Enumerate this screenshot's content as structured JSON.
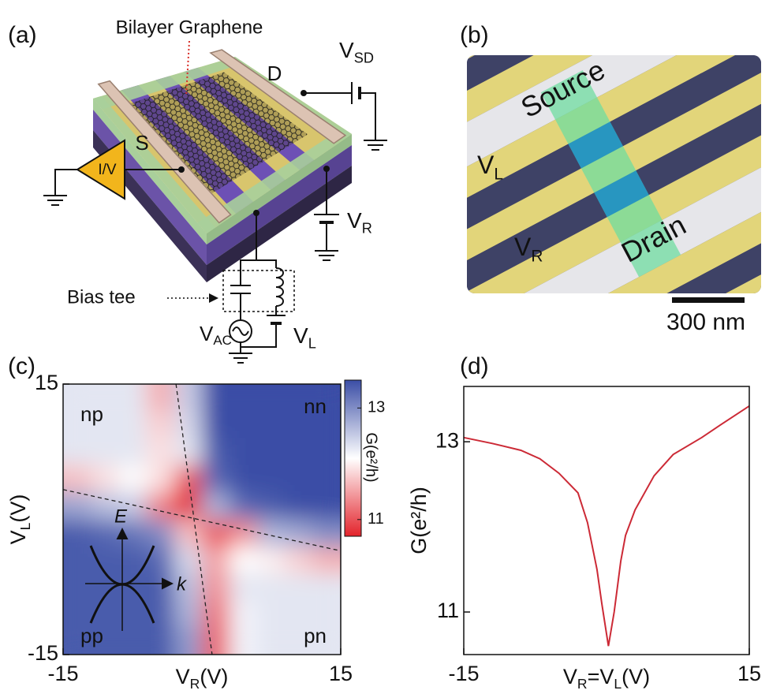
{
  "panels": [
    {
      "label": "(a)",
      "annotations": {
        "graphene": "Bilayer Graphene",
        "drain": "D",
        "source": "S",
        "vsd": [
          "V",
          "SD"
        ],
        "iv": "I/V",
        "vr": [
          "V",
          "R"
        ],
        "bias_tee": "Bias tee",
        "vac": [
          "V",
          "AC"
        ],
        "vl": [
          "V",
          "L"
        ]
      }
    },
    {
      "label": "(b)",
      "annotations": {
        "source": "Source",
        "drain": "Drain",
        "vl": [
          "V",
          "L"
        ],
        "vr": [
          "V",
          "R"
        ],
        "scale_bar": "300 nm"
      }
    }
  ],
  "chart_data": [
    {
      "type": "heatmap",
      "panel": "(c)",
      "xlabel": [
        "V",
        "R",
        "(V)"
      ],
      "ylabel": [
        "V",
        "L",
        "(V)"
      ],
      "x": [
        -13.5,
        -10.5,
        -7.5,
        -4.5,
        -1.5,
        1.5,
        4.5,
        7.5,
        10.5,
        13.5
      ],
      "y": [
        13.5,
        10.5,
        7.5,
        4.5,
        1.5,
        -1.5,
        -4.5,
        -7.5,
        -10.5,
        -13.5
      ],
      "values": [
        [
          12.3,
          12.3,
          12.3,
          11.6,
          12.5,
          13.5,
          13.6,
          13.6,
          13.6,
          13.6
        ],
        [
          12.3,
          12.3,
          12.3,
          11.8,
          12.4,
          13.5,
          13.6,
          13.6,
          13.6,
          13.6
        ],
        [
          12.3,
          12.3,
          12.3,
          11.9,
          12.3,
          13.4,
          13.6,
          13.6,
          13.6,
          13.6
        ],
        [
          11.7,
          11.9,
          12.1,
          11.9,
          11.0,
          13.3,
          13.6,
          13.6,
          13.6,
          13.6
        ],
        [
          12.8,
          12.6,
          12.5,
          11.3,
          10.7,
          12.7,
          13.3,
          13.4,
          13.5,
          13.6
        ],
        [
          13.4,
          13.3,
          13.2,
          13.0,
          11.7,
          11.0,
          11.4,
          12.7,
          12.8,
          13.0
        ],
        [
          13.4,
          13.4,
          13.4,
          13.3,
          12.4,
          11.5,
          12.1,
          12.0,
          11.8,
          11.6
        ],
        [
          13.4,
          13.4,
          13.4,
          13.4,
          12.6,
          11.4,
          12.3,
          12.3,
          12.3,
          12.3
        ],
        [
          13.4,
          13.4,
          13.4,
          13.4,
          12.7,
          11.2,
          12.2,
          12.3,
          12.3,
          12.3
        ],
        [
          13.4,
          13.4,
          13.4,
          13.4,
          12.9,
          11.1,
          12.2,
          12.3,
          12.3,
          12.3
        ]
      ],
      "xlim": [
        -15,
        15
      ],
      "ylim": [
        -15,
        15
      ],
      "xticks": [
        -15,
        15
      ],
      "yticks": [
        -15,
        15
      ],
      "colorbar": {
        "label": "G(e²/h)",
        "clim": [
          10.7,
          13.5
        ],
        "ticks": [
          11,
          13
        ],
        "colors": [
          "#e3232b",
          "#ffffff",
          "#3b4ea6"
        ]
      },
      "guide_lines": [
        {
          "x": [
            -2.8,
            1.1
          ],
          "y": [
            15,
            -15
          ]
        },
        {
          "x": [
            -15,
            15
          ],
          "y": [
            3.3,
            -3.5
          ]
        }
      ],
      "regions": [
        {
          "text": "np",
          "color": "#222222"
        },
        {
          "text": "nn",
          "color": "#d9d24c"
        },
        {
          "text": "pp",
          "color": "#d9d24c"
        },
        {
          "text": "pn",
          "color": "#222222"
        }
      ],
      "inset_labels": {
        "energy": "E",
        "momentum": "k"
      }
    },
    {
      "type": "line",
      "panel": "(d)",
      "xlabel": [
        "V",
        "R",
        "=V",
        "L",
        "(V)"
      ],
      "ylabel": "G(e²/h)",
      "x": [
        -15,
        -12,
        -9,
        -7,
        -5,
        -3,
        -2,
        -1,
        -0.5,
        0.2,
        0.8,
        1.5,
        2,
        3,
        5,
        7,
        10,
        12,
        15
      ],
      "values": [
        13.05,
        12.98,
        12.9,
        12.8,
        12.63,
        12.4,
        12.05,
        11.5,
        11.1,
        10.6,
        11.0,
        11.6,
        11.9,
        12.2,
        12.6,
        12.85,
        13.05,
        13.2,
        13.42
      ],
      "color": "#cc2a36",
      "xlim": [
        -15,
        15
      ],
      "ylim": [
        10.5,
        13.65
      ],
      "xticks": [
        -15,
        15
      ],
      "yticks": [
        11,
        13
      ]
    }
  ]
}
